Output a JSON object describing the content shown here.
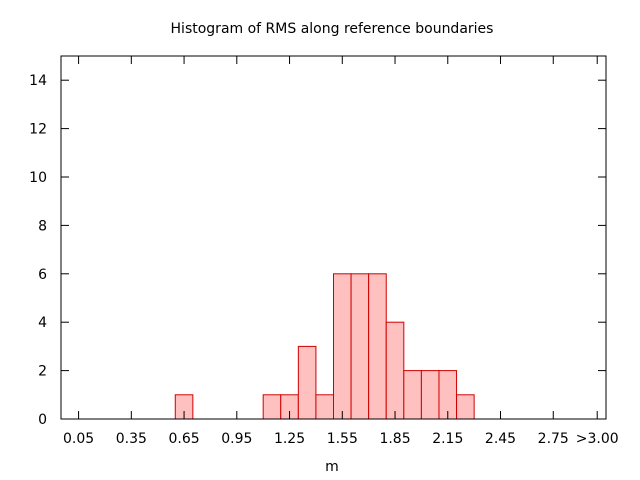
{
  "chart_data": {
    "type": "bar",
    "title": "Histogram of RMS along reference boundaries",
    "xlabel": "m",
    "ylabel": "",
    "x_tick_labels": [
      "0.05",
      "0.35",
      "0.65",
      "0.95",
      "1.25",
      "1.55",
      "1.85",
      "2.15",
      "2.45",
      "2.75",
      ">3.00"
    ],
    "x_tick_values": [
      0.05,
      0.35,
      0.65,
      0.95,
      1.25,
      1.55,
      1.85,
      2.15,
      2.45,
      2.75,
      3.0
    ],
    "xlim": [
      -0.05,
      3.05
    ],
    "bin_width": 0.1,
    "bins": [
      {
        "x": 0.65,
        "count": 1
      },
      {
        "x": 1.15,
        "count": 1
      },
      {
        "x": 1.25,
        "count": 1
      },
      {
        "x": 1.35,
        "count": 3
      },
      {
        "x": 1.45,
        "count": 1
      },
      {
        "x": 1.55,
        "count": 6
      },
      {
        "x": 1.65,
        "count": 6
      },
      {
        "x": 1.75,
        "count": 6
      },
      {
        "x": 1.85,
        "count": 4
      },
      {
        "x": 1.95,
        "count": 2
      },
      {
        "x": 2.05,
        "count": 2
      },
      {
        "x": 2.15,
        "count": 2
      },
      {
        "x": 2.25,
        "count": 1
      }
    ],
    "y_ticks": [
      0,
      2,
      4,
      6,
      8,
      10,
      12,
      14
    ],
    "ylim": [
      0,
      15
    ],
    "grid": false,
    "colors": {
      "bar_fill": "#ffc0c0",
      "bar_stroke": "#d00000",
      "axis": "#000000"
    }
  }
}
